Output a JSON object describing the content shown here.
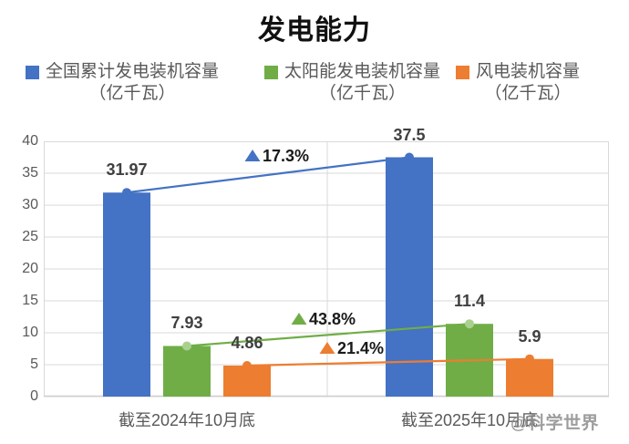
{
  "title": "发电能力",
  "watermark": "@科学世界",
  "legend": [
    {
      "line1": "全国累计发电装机容量",
      "line2": "（亿千瓦）",
      "color": "#4472C4"
    },
    {
      "line1": "太阳能发电装机容量",
      "line2": "（亿千瓦）",
      "color": "#70AD47"
    },
    {
      "line1": "风电装机容量",
      "line2": "（亿千瓦）",
      "color": "#ED7D31"
    }
  ],
  "colors": {
    "blue": "#4472C4",
    "green": "#70AD47",
    "green_marker": "#A9D18E",
    "orange": "#ED7D31",
    "gridline": "#D9D9D9",
    "axis_line": "#D0CECE",
    "axis_text": "#595959",
    "value_label_text": "#404040",
    "growth_text": "#1a1a1a",
    "title_text": "#111111"
  },
  "chart_data": {
    "type": "bar",
    "title": "发电能力",
    "categories": [
      "截至2024年10月底",
      "截至2025年10月底"
    ],
    "series": [
      {
        "name": "全国累计发电装机容量（亿千瓦）",
        "color": "#4472C4",
        "marker_color": "#4472C4",
        "values": [
          31.97,
          37.5
        ],
        "growth": "17.3%"
      },
      {
        "name": "太阳能发电装机容量（亿千瓦）",
        "color": "#70AD47",
        "marker_color": "#A9D18E",
        "values": [
          7.93,
          11.4
        ],
        "growth": "43.8%"
      },
      {
        "name": "风电装机容量（亿千瓦）",
        "color": "#ED7D31",
        "marker_color": "#ED7D31",
        "values": [
          4.86,
          5.9
        ],
        "growth": "21.4%"
      }
    ],
    "ylim": [
      0,
      40
    ],
    "yticks": [
      0,
      5,
      10,
      15,
      20,
      25,
      30,
      35,
      40
    ],
    "grid": true,
    "legend_position": "top",
    "annotations": [
      {
        "text": "17.3%",
        "marker": "triangle-up",
        "color": "#4472C4"
      },
      {
        "text": "43.8%",
        "marker": "triangle-up",
        "color": "#70AD47"
      },
      {
        "text": "21.4%",
        "marker": "triangle-up",
        "color": "#ED7D31"
      }
    ]
  }
}
